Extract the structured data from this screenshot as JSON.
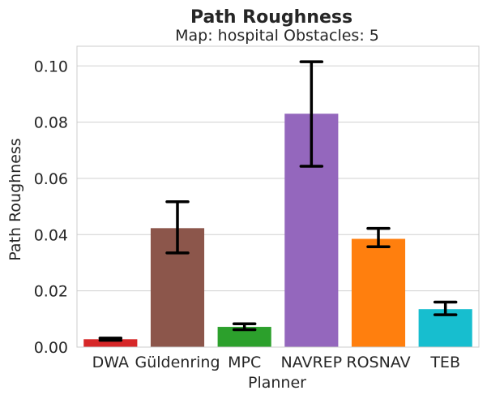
{
  "chart_data": {
    "type": "bar",
    "title": "Path Roughness",
    "subtitle": "Map: hospital Obstacles: 5",
    "xlabel": "Planner",
    "ylabel": "Path Roughness",
    "ylim": [
      0,
      0.107
    ],
    "yticks": [
      "0.00",
      "0.02",
      "0.04",
      "0.06",
      "0.08",
      "0.10"
    ],
    "ytick_values": [
      0,
      0.02,
      0.04,
      0.06,
      0.08,
      0.1
    ],
    "grid": true,
    "categories": [
      "DWA",
      "Güldenring",
      "MPC",
      "NAVREP",
      "ROSNAV",
      "TEB"
    ],
    "values": [
      0.0028,
      0.0423,
      0.0072,
      0.083,
      0.0385,
      0.0135
    ],
    "err_low": [
      0.0024,
      0.0335,
      0.0062,
      0.0643,
      0.0357,
      0.0115
    ],
    "err_high": [
      0.0032,
      0.0517,
      0.0083,
      0.1015,
      0.0422,
      0.016
    ],
    "colors": [
      "#d62728",
      "#8c564b",
      "#2ca02c",
      "#9467bd",
      "#ff7f0e",
      "#17becf"
    ]
  }
}
